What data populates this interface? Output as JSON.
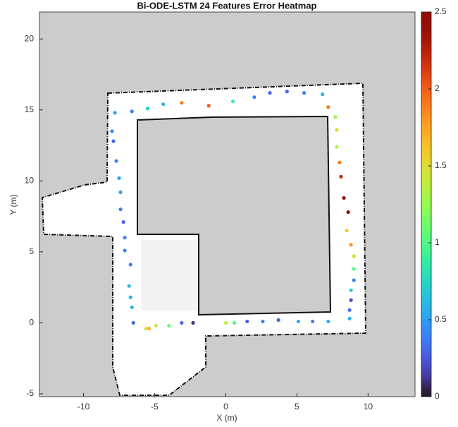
{
  "chart_data": {
    "type": "scatter",
    "title": "Bi-ODE-LSTM 24 Features Error Heatmap",
    "xlabel": "X (m)",
    "ylabel": "Y (m)",
    "xlim": [
      -13.1,
      13.3
    ],
    "xticks": [
      -10,
      -5,
      0,
      5,
      10
    ],
    "ylim": [
      -5.2,
      21.9
    ],
    "yticks": [
      -5,
      0,
      5,
      10,
      15,
      20
    ],
    "colormap": "turbo",
    "clim": [
      0,
      2.5
    ],
    "cticks": [
      0,
      0.5,
      1,
      1.5,
      2,
      2.5
    ],
    "x": [
      -7.8,
      -6.6,
      -5.5,
      -4.4,
      -3.1,
      -1.2,
      0.5,
      2.0,
      3.1,
      4.3,
      5.5,
      6.8,
      7.2,
      7.7,
      7.8,
      7.8,
      8.0,
      8.1,
      8.3,
      8.6,
      8.5,
      8.8,
      9.0,
      9.0,
      9.0,
      8.8,
      8.8,
      8.7,
      8.7,
      7.2,
      6.1,
      5.1,
      3.7,
      2.6,
      1.5,
      0.6,
      0.0,
      -2.3,
      -3.1,
      -4.0,
      -4.9,
      -5.4,
      -5.6,
      -6.5,
      -6.6,
      -6.7,
      -6.8,
      -6.7,
      -7.1,
      -7.1,
      -7.2,
      -7.4,
      -7.4,
      -7.5,
      -7.7,
      -7.9,
      -8.0
    ],
    "y": [
      14.8,
      14.9,
      15.1,
      15.4,
      15.5,
      15.3,
      15.6,
      15.9,
      16.2,
      16.3,
      16.2,
      16.1,
      15.2,
      14.5,
      13.6,
      12.4,
      11.3,
      10.3,
      8.8,
      7.8,
      6.5,
      5.5,
      4.7,
      3.8,
      3.0,
      2.3,
      1.6,
      0.9,
      0.3,
      0.1,
      0.1,
      0.1,
      0.2,
      0.1,
      0.1,
      0.0,
      0.0,
      0.0,
      0.0,
      -0.2,
      -0.2,
      -0.4,
      -0.4,
      0.0,
      1.1,
      1.8,
      2.6,
      4.1,
      5.1,
      6.0,
      7.1,
      8.0,
      9.2,
      10.2,
      11.4,
      12.8,
      13.5
    ],
    "values": [
      0.5,
      0.4,
      0.7,
      0.6,
      1.9,
      2.0,
      0.9,
      0.4,
      0.3,
      0.3,
      0.4,
      0.6,
      1.9,
      1.3,
      1.5,
      1.3,
      1.9,
      2.2,
      2.4,
      2.5,
      1.6,
      1.8,
      1.5,
      1.0,
      0.4,
      0.7,
      0.2,
      0.3,
      0.6,
      0.6,
      0.4,
      0.6,
      0.3,
      0.4,
      0.3,
      1.0,
      1.4,
      0.1,
      0.3,
      1.1,
      1.4,
      1.7,
      1.5,
      0.3,
      0.6,
      0.6,
      0.6,
      0.4,
      0.4,
      0.4,
      0.3,
      0.4,
      0.5,
      0.5,
      0.4,
      0.3,
      0.4
    ]
  }
}
